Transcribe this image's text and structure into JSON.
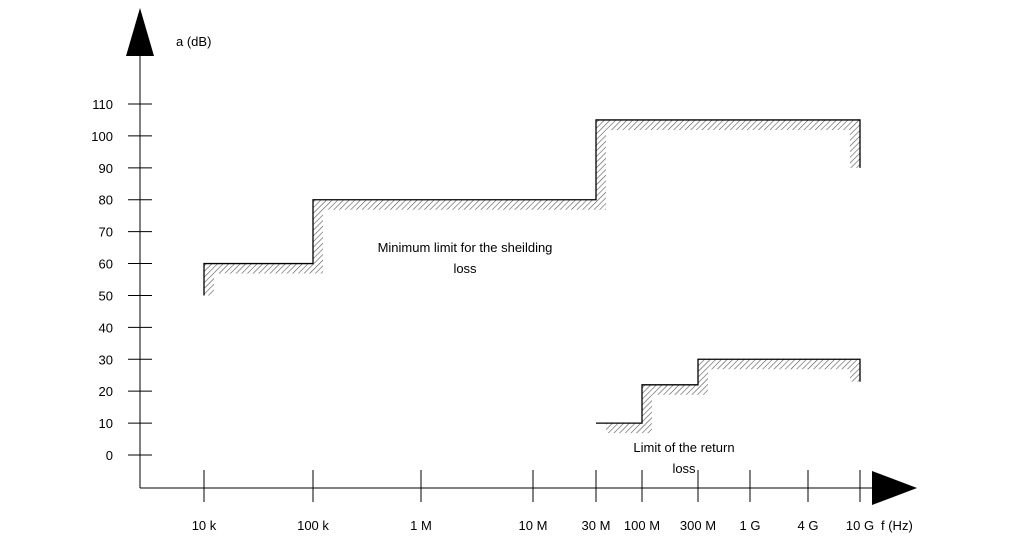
{
  "chart_data": {
    "type": "line",
    "title": "",
    "xlabel": "f (Hz)",
    "ylabel": "a (dB)",
    "grid": false,
    "legend": "none",
    "x_scale": "log",
    "x_ticks": [
      "10 k",
      "100 k",
      "1 M",
      "10 M",
      "30 M",
      "100 M",
      "300 M",
      "1 G",
      "4 G",
      "10 G"
    ],
    "x_tick_values": [
      10000,
      100000,
      1000000,
      10000000,
      30000000,
      100000000,
      300000000,
      1000000000,
      4000000000,
      10000000000
    ],
    "y_ticks": [
      0,
      10,
      20,
      30,
      40,
      50,
      60,
      70,
      80,
      90,
      100,
      110
    ],
    "ylim": [
      0,
      110
    ],
    "series": [
      {
        "name": "Minimum limit for the sheilding loss",
        "points": [
          {
            "x": 10000,
            "y": 50
          },
          {
            "x": 10000,
            "y": 60
          },
          {
            "x": 100000,
            "y": 60
          },
          {
            "x": 100000,
            "y": 80
          },
          {
            "x": 30000000,
            "y": 80
          },
          {
            "x": 30000000,
            "y": 105
          },
          {
            "x": 10000000000,
            "y": 105
          },
          {
            "x": 10000000000,
            "y": 90
          }
        ]
      },
      {
        "name": "Limit of the return loss",
        "points": [
          {
            "x": 30000000,
            "y": 10
          },
          {
            "x": 100000000,
            "y": 10
          },
          {
            "x": 100000000,
            "y": 22
          },
          {
            "x": 300000000,
            "y": 22
          },
          {
            "x": 300000000,
            "y": 30
          },
          {
            "x": 10000000000,
            "y": 30
          },
          {
            "x": 10000000000,
            "y": 23
          }
        ]
      }
    ],
    "annotations": [
      "Minimum limit for the sheilding loss",
      "Limit of the return loss"
    ],
    "colors": {
      "line": "#000000",
      "hatch": "#555555",
      "background": "#ffffff"
    }
  }
}
